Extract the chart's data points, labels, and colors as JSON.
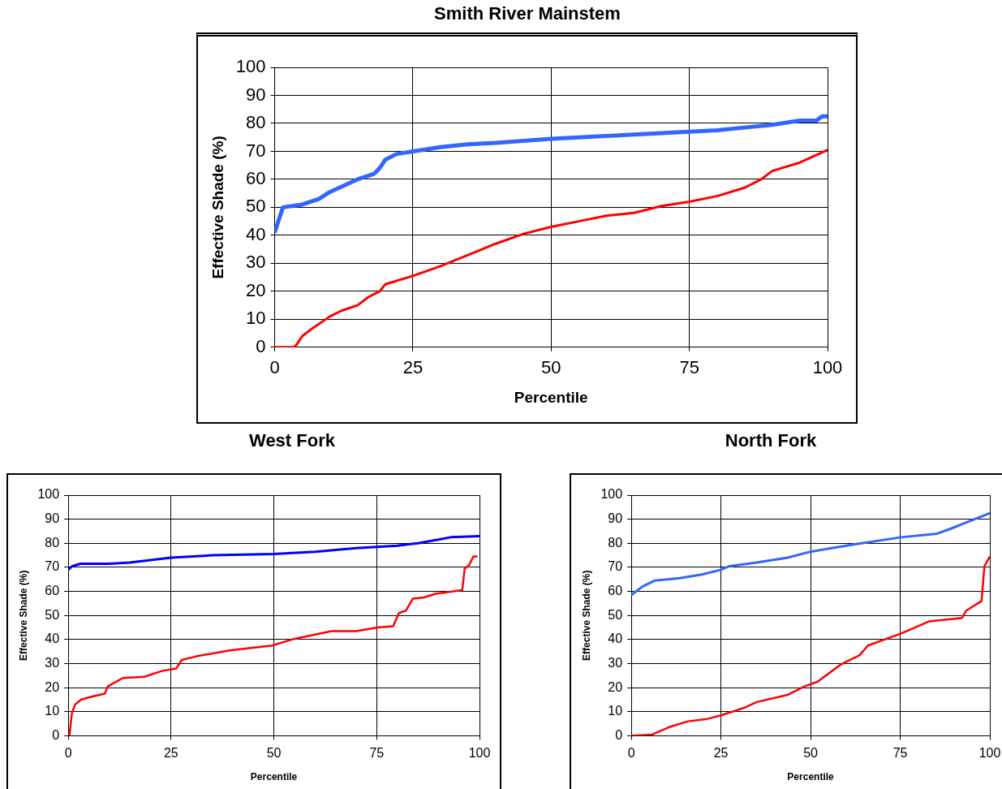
{
  "chart_data": [
    {
      "type": "line",
      "title": "Smith River Mainstem",
      "xlabel": "Percentile",
      "ylabel": "Effective Shade (%)",
      "xlim": [
        0,
        100
      ],
      "xticks": [
        0,
        25,
        50,
        75,
        100
      ],
      "ylim": [
        0,
        100
      ],
      "yticks": [
        0,
        10,
        20,
        30,
        40,
        50,
        60,
        70,
        80,
        90,
        100
      ],
      "grid": true,
      "legend": false,
      "marker": "none",
      "line_style": "solid",
      "series": [
        {
          "color": "#3366ff",
          "x": [
            0,
            1,
            1.5,
            5,
            8,
            10,
            15,
            18,
            19,
            20,
            22,
            25,
            30,
            35,
            40,
            50,
            60,
            70,
            75,
            80,
            85,
            90,
            95,
            98,
            99,
            100
          ],
          "values": [
            41,
            47,
            50,
            51,
            53,
            55.5,
            60,
            62,
            64,
            67,
            69,
            70,
            71.5,
            72.5,
            73,
            74.5,
            75.5,
            76.5,
            77,
            77.5,
            78.5,
            79.5,
            81,
            81,
            82.5,
            82.5
          ]
        },
        {
          "color": "#ff0000",
          "x": [
            0,
            3.5,
            4,
            5,
            7,
            10,
            12,
            15,
            17,
            19,
            20,
            25,
            30,
            35,
            40,
            45,
            50,
            55,
            60,
            65,
            70,
            75,
            80,
            85,
            88,
            90,
            95,
            100
          ],
          "values": [
            0,
            0,
            1,
            4,
            7,
            11,
            13,
            15,
            18,
            20,
            22.5,
            25.5,
            29,
            33,
            37,
            40.5,
            43,
            45,
            47,
            48,
            50.5,
            52,
            54,
            57,
            60,
            63,
            66,
            70.5
          ]
        }
      ]
    },
    {
      "type": "line",
      "title": "West Fork",
      "xlabel": "Percentile",
      "ylabel": "Effective Shade (%)",
      "xlim": [
        0,
        100
      ],
      "xticks": [
        0,
        25,
        50,
        75,
        100
      ],
      "ylim": [
        0,
        100
      ],
      "yticks": [
        0,
        10,
        20,
        30,
        40,
        50,
        60,
        70,
        80,
        90,
        100
      ],
      "grid": true,
      "legend": false,
      "marker": "none",
      "line_style": "solid",
      "series": [
        {
          "color": "#0000ff",
          "x": [
            0,
            1,
            3,
            10,
            15,
            20,
            25,
            35,
            50,
            60,
            70,
            75,
            80,
            85,
            90,
            93,
            100
          ],
          "values": [
            69,
            70.5,
            71.5,
            71.5,
            72,
            73,
            74,
            75,
            75.5,
            76.5,
            78,
            78.5,
            79,
            80,
            81.5,
            82.5,
            83
          ]
        },
        {
          "color": "#ff0000",
          "x": [
            0.3,
            0.9,
            1.7,
            3.1,
            5.1,
            8.9,
            9.6,
            13.3,
            18.5,
            22.9,
            26.3,
            27.6,
            31.1,
            39.3,
            49.6,
            54.4,
            64,
            70.1,
            75.2,
            79,
            80.4,
            82.1,
            83.8,
            86.5,
            89.3,
            95.8,
            96.4,
            97.5,
            98.5,
            99.5
          ],
          "values": [
            0,
            9.5,
            13,
            15,
            16,
            17.5,
            20.5,
            24,
            24.5,
            27,
            28,
            31.5,
            33,
            35.5,
            37.5,
            40,
            43.5,
            43.5,
            45,
            45.5,
            51,
            52,
            57,
            57.5,
            59,
            60.5,
            69.5,
            71,
            74.5,
            74.5
          ]
        }
      ]
    },
    {
      "type": "line",
      "title": "North Fork",
      "xlabel": "Percentile",
      "ylabel": "Effective Shade (%)",
      "xlim": [
        0,
        100
      ],
      "xticks": [
        0,
        25,
        50,
        75,
        100
      ],
      "ylim": [
        0,
        100
      ],
      "yticks": [
        0,
        10,
        20,
        30,
        40,
        50,
        60,
        70,
        80,
        90,
        100
      ],
      "grid": true,
      "legend": false,
      "marker": "none",
      "line_style": "solid",
      "series": [
        {
          "color": "#3366ff",
          "x": [
            0,
            3.1,
            6.6,
            13.5,
            19.7,
            25,
            27.4,
            35,
            43.6,
            50,
            62,
            75.3,
            85.3,
            89,
            92.3,
            100
          ],
          "values": [
            58.5,
            62,
            64.5,
            65.5,
            67,
            69,
            70.5,
            72,
            74,
            76.5,
            79.5,
            82.5,
            84,
            86,
            88,
            92.5
          ]
        },
        {
          "color": "#ff0000",
          "x": [
            0,
            5.8,
            10.4,
            15.8,
            21.2,
            25,
            31.3,
            35,
            43.6,
            48.3,
            52,
            58.3,
            63.7,
            66,
            75.3,
            83,
            92.3,
            93.4,
            97.7,
            98.5,
            100
          ],
          "values": [
            0,
            0.5,
            3.5,
            6,
            7,
            8.5,
            11.5,
            14,
            17,
            20.5,
            22.5,
            29.5,
            33.5,
            37.5,
            42.5,
            47.5,
            49,
            52,
            56,
            70.5,
            74.5
          ]
        }
      ]
    }
  ]
}
